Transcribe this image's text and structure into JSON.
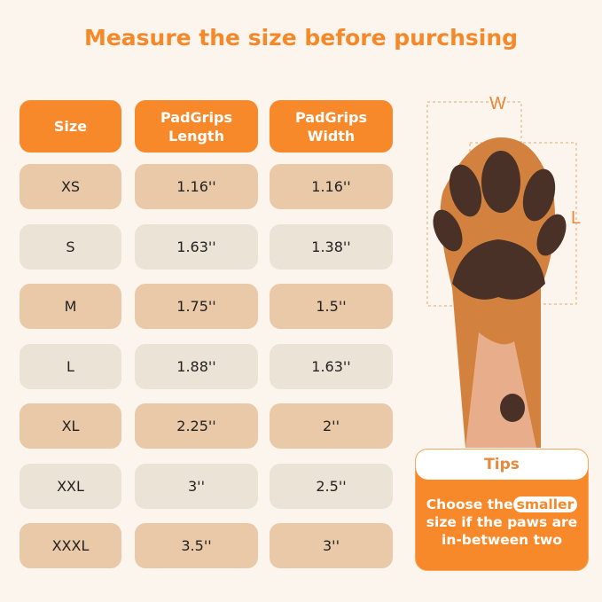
{
  "title": "Measure the size before purchsing",
  "table": {
    "headers": [
      "Size",
      "PadGrips Length",
      "PadGrips Width"
    ],
    "rows": [
      [
        "XS",
        "1.16''",
        "1.16''"
      ],
      [
        "S",
        "1.63''",
        "1.38''"
      ],
      [
        "M",
        "1.75''",
        "1.5''"
      ],
      [
        "L",
        "1.88''",
        "1.63''"
      ],
      [
        "XL",
        "2.25''",
        "2''"
      ],
      [
        "XXL",
        "3''",
        "2.5''"
      ],
      [
        "XXXL",
        "3.5''",
        "3''"
      ]
    ]
  },
  "diagram": {
    "width_label": "W",
    "length_label": "L"
  },
  "tips": {
    "heading": "Tips",
    "text_before": "Choose the",
    "highlight": "smaller",
    "text_after": "size if the paws are in-between two"
  },
  "colors": {
    "accent": "#f7892a",
    "row_odd": "#e9c9a8",
    "row_even": "#ebe3d6",
    "background": "#fcf5ee"
  }
}
